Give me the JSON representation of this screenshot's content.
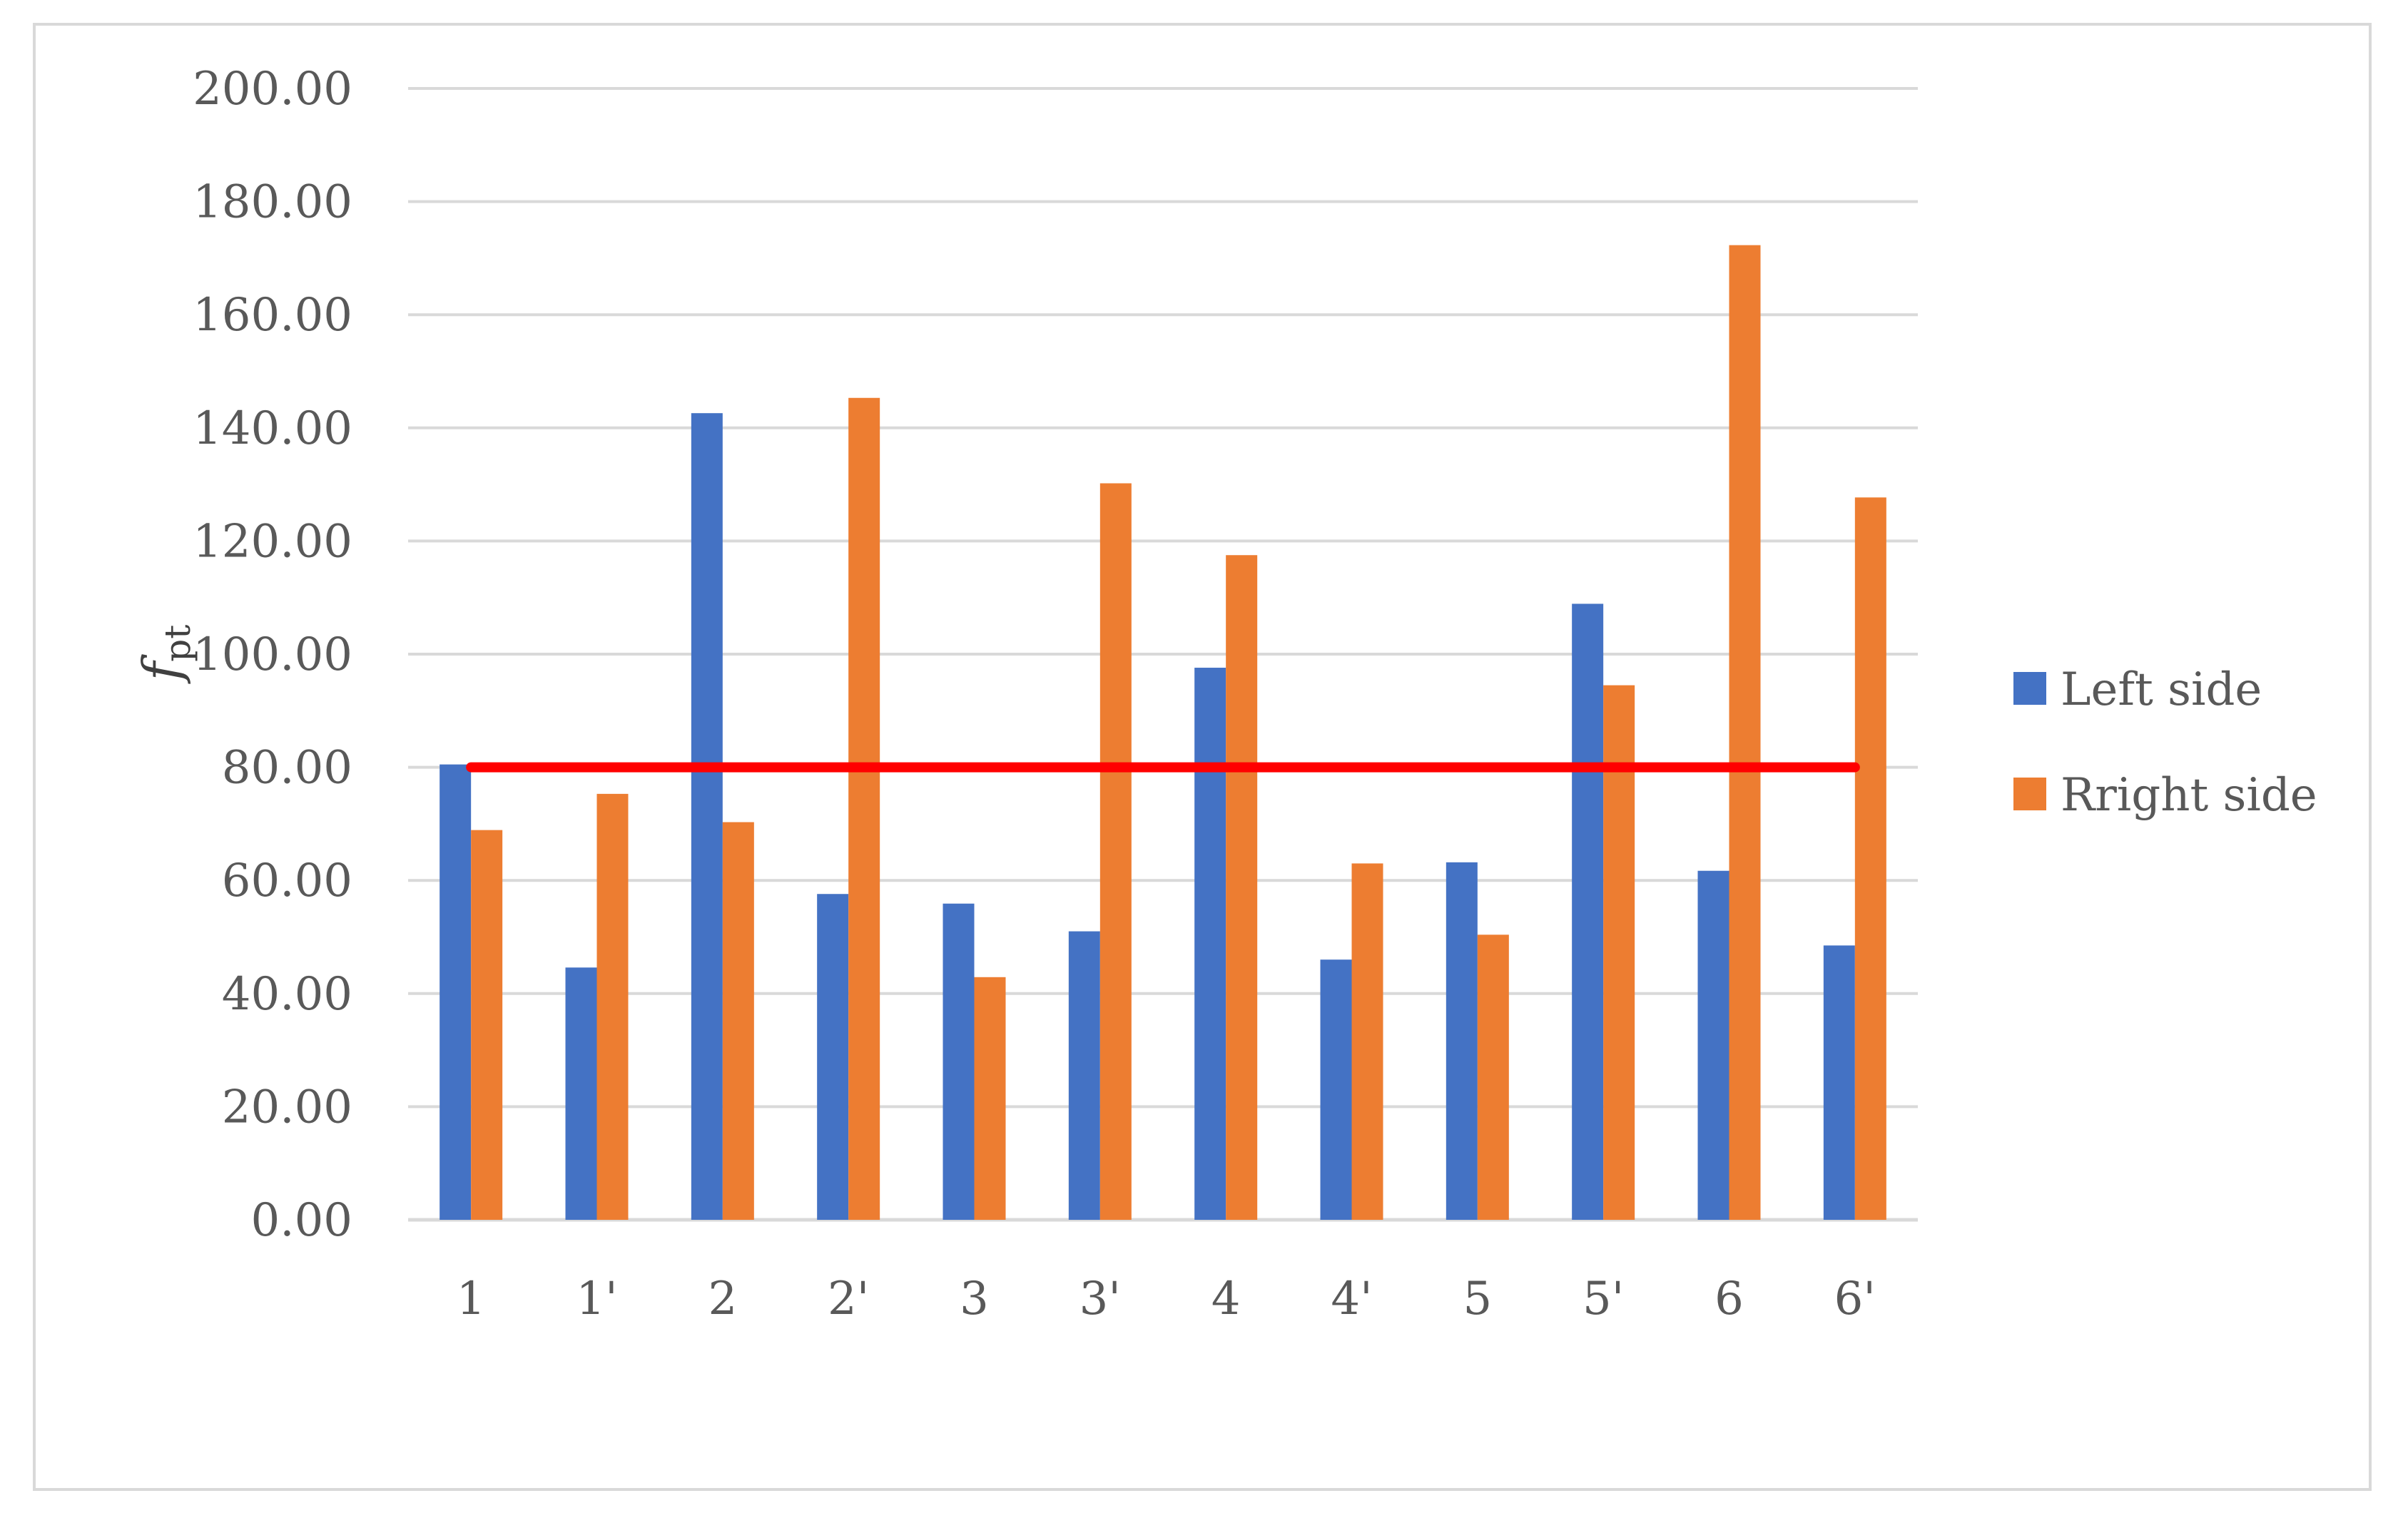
{
  "chart_data": {
    "type": "bar",
    "categories": [
      "1",
      "1'",
      "2",
      "2'",
      "3",
      "3'",
      "4",
      "4'",
      "5",
      "5'",
      "6",
      "6'"
    ],
    "series": [
      {
        "name": "Left side",
        "color": "#4472c4",
        "values": [
          80.5,
          44.6,
          142.6,
          57.6,
          55.9,
          51.0,
          97.6,
          46.0,
          63.2,
          108.9,
          61.7,
          48.5
        ]
      },
      {
        "name": "Rright side",
        "color": "#ed7d31",
        "values": [
          68.9,
          75.3,
          70.3,
          145.3,
          42.9,
          130.2,
          117.5,
          63.0,
          50.4,
          94.5,
          172.3,
          127.7
        ]
      }
    ],
    "threshold": {
      "value": 80,
      "color": "#ff0000"
    },
    "ylabel": "f",
    "ylabel_sub": "pt",
    "ylim": [
      0,
      200
    ],
    "yticks": [
      "0.00",
      "20.00",
      "40.00",
      "60.00",
      "80.00",
      "100.00",
      "120.00",
      "140.00",
      "160.00",
      "180.00",
      "200.00"
    ],
    "grid": true,
    "legend_position": "right"
  }
}
